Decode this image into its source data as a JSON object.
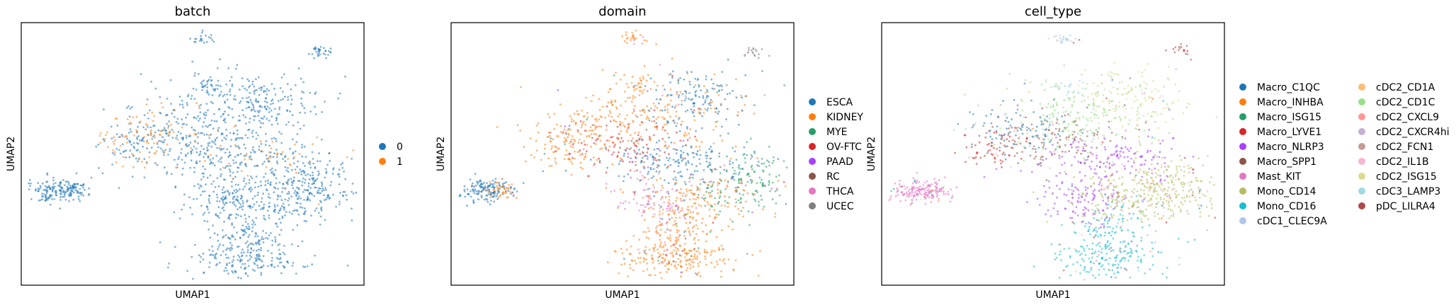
{
  "chart_data": [
    {
      "type": "scatter",
      "title": "batch",
      "xlabel": "UMAP1",
      "ylabel": "UMAP2",
      "grid": false,
      "legend_position": "right",
      "series": [
        {
          "name": "0",
          "color": "#1f77b4"
        },
        {
          "name": "1",
          "color": "#ff7f0e"
        }
      ]
    },
    {
      "type": "scatter",
      "title": "domain",
      "xlabel": "UMAP1",
      "ylabel": "UMAP2",
      "grid": false,
      "legend_position": "right",
      "series": [
        {
          "name": "ESCA",
          "color": "#1f77b4"
        },
        {
          "name": "KIDNEY",
          "color": "#ff7f0e"
        },
        {
          "name": "MYE",
          "color": "#279e68"
        },
        {
          "name": "OV-FTC",
          "color": "#d62728"
        },
        {
          "name": "PAAD",
          "color": "#aa40fc"
        },
        {
          "name": "RC",
          "color": "#8c564b"
        },
        {
          "name": "THCA",
          "color": "#e377c2"
        },
        {
          "name": "UCEC",
          "color": "#7f7f7f"
        }
      ]
    },
    {
      "type": "scatter",
      "title": "cell_type",
      "xlabel": "UMAP1",
      "ylabel": "UMAP2",
      "grid": false,
      "legend_position": "right",
      "series": [
        {
          "name": "Macro_C1QC",
          "color": "#1f77b4"
        },
        {
          "name": "Macro_INHBA",
          "color": "#ff7f0e"
        },
        {
          "name": "Macro_ISG15",
          "color": "#279e68"
        },
        {
          "name": "Macro_LYVE1",
          "color": "#d62728"
        },
        {
          "name": "Macro_NLRP3",
          "color": "#aa40fc"
        },
        {
          "name": "Macro_SPP1",
          "color": "#8c564b"
        },
        {
          "name": "Mast_KIT",
          "color": "#e377c2"
        },
        {
          "name": "Mono_CD14",
          "color": "#b5bd61"
        },
        {
          "name": "Mono_CD16",
          "color": "#17becf"
        },
        {
          "name": "cDC1_CLEC9A",
          "color": "#aec7e8"
        },
        {
          "name": "cDC2_CD1A",
          "color": "#ffbb78"
        },
        {
          "name": "cDC2_CD1C",
          "color": "#98df8a"
        },
        {
          "name": "cDC2_CXCL9",
          "color": "#ff9896"
        },
        {
          "name": "cDC2_CXCR4hi",
          "color": "#c5b0d5"
        },
        {
          "name": "cDC2_FCN1",
          "color": "#c49c94"
        },
        {
          "name": "cDC2_IL1B",
          "color": "#f7b6d2"
        },
        {
          "name": "cDC2_ISG15",
          "color": "#dbdb8d"
        },
        {
          "name": "cDC3_LAMP3",
          "color": "#9edae5"
        },
        {
          "name": "pDC_LILRA4",
          "color": "#ad494a"
        }
      ]
    }
  ]
}
